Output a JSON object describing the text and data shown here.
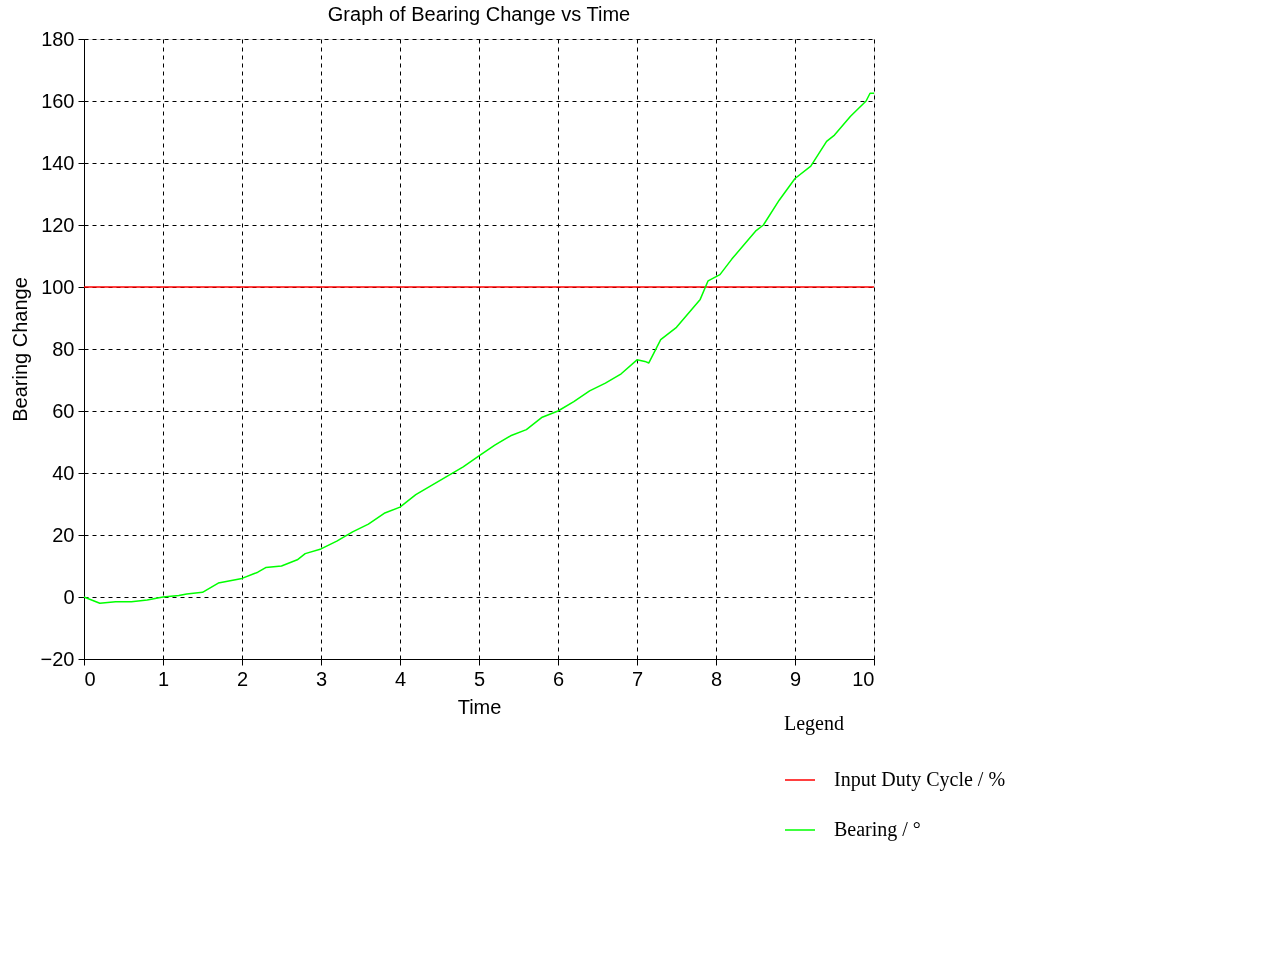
{
  "chart_data": {
    "type": "line",
    "title": "Graph of Bearing Change vs Time",
    "xlabel": "Time",
    "ylabel": "Bearing Change",
    "legend_title": "Legend",
    "xlim": [
      0,
      10
    ],
    "xticks": [
      0,
      1,
      2,
      3,
      4,
      5,
      6,
      7,
      8,
      9,
      10
    ],
    "ylim": [
      -20,
      180
    ],
    "yticks": [
      -20,
      0,
      20,
      40,
      60,
      80,
      100,
      120,
      140,
      160,
      180
    ],
    "grid": true,
    "legend": "bottom right",
    "line_style": "solid",
    "marker": "none",
    "series": [
      {
        "name": "Input Duty Cycle / %",
        "color": "#ff0000",
        "x": [
          0,
          10
        ],
        "values": [
          100,
          100
        ]
      },
      {
        "name": "Bearing / °",
        "color": "#00ff00",
        "x": [
          0,
          0.2,
          0.4,
          0.6,
          0.8,
          1,
          1.2,
          1.3,
          1.5,
          1.7,
          1.8,
          2,
          2.2,
          2.3,
          2.5,
          2.7,
          2.8,
          3,
          3.2,
          3.4,
          3.6,
          3.8,
          4,
          4.2,
          4.4,
          4.6,
          4.8,
          5,
          5.2,
          5.4,
          5.6,
          5.8,
          6,
          6.2,
          6.4,
          6.6,
          6.8,
          7,
          7.1,
          7.15,
          7.3,
          7.5,
          7.7,
          7.8,
          7.9,
          8.05,
          8.2,
          8.4,
          8.5,
          8.6,
          8.8,
          9,
          9.2,
          9.4,
          9.5,
          9.7,
          9.9,
          9.95,
          10
        ],
        "values": [
          0,
          -2,
          -1.5,
          -1.5,
          -1,
          0,
          0.5,
          1,
          1.5,
          4.5,
          5,
          6,
          8,
          9.5,
          10,
          12,
          14,
          15.5,
          18,
          21,
          23.5,
          27,
          29,
          33,
          36,
          39,
          42,
          45.5,
          49,
          52,
          54,
          58,
          60,
          63,
          66.5,
          69,
          72,
          76.5,
          76,
          75.5,
          83,
          87,
          93,
          96,
          102,
          104,
          109,
          115,
          118,
          120,
          128,
          135,
          139,
          147,
          149,
          155,
          160,
          162.5,
          162.5
        ]
      }
    ]
  }
}
